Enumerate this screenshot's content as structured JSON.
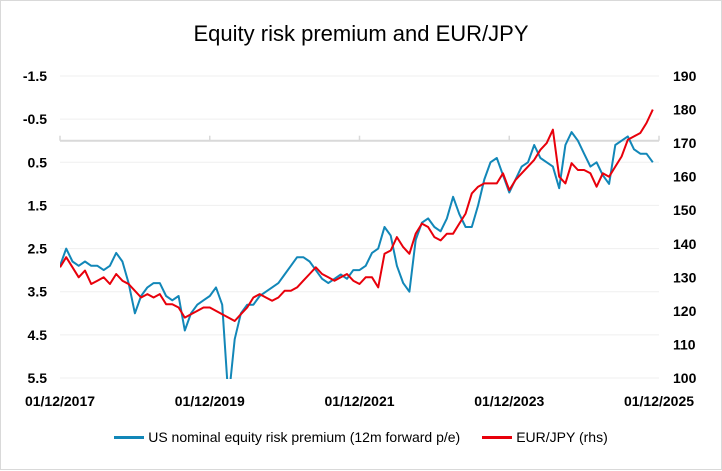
{
  "chart_data": {
    "type": "line",
    "title": "Equity risk premium and EUR/JPY",
    "x_tick_labels": [
      "01/12/2017",
      "01/12/2019",
      "01/12/2021",
      "01/12/2023",
      "01/12/2025"
    ],
    "x_range": [
      "2017-12",
      "2025-12"
    ],
    "y_left": {
      "range": [
        -1.5,
        5.5
      ],
      "inverted": true,
      "tick_labels": [
        "-1.5",
        "-0.5",
        "0.5",
        "1.5",
        "2.5",
        "3.5",
        "4.5",
        "5.5"
      ],
      "ticks": [
        -1.5,
        -0.5,
        0.5,
        1.5,
        2.5,
        3.5,
        4.5,
        5.5
      ]
    },
    "y_right": {
      "range": [
        100,
        190
      ],
      "tick_labels": [
        "190",
        "180",
        "170",
        "160",
        "150",
        "140",
        "130",
        "120",
        "110",
        "100"
      ],
      "ticks": [
        190,
        180,
        170,
        160,
        150,
        140,
        130,
        120,
        110,
        100
      ]
    },
    "grid": true,
    "legend_position": "bottom",
    "x": [
      "2017-12",
      "2018-01",
      "2018-02",
      "2018-03",
      "2018-04",
      "2018-05",
      "2018-06",
      "2018-07",
      "2018-08",
      "2018-09",
      "2018-10",
      "2018-11",
      "2018-12",
      "2019-01",
      "2019-02",
      "2019-03",
      "2019-04",
      "2019-05",
      "2019-06",
      "2019-07",
      "2019-08",
      "2019-09",
      "2019-10",
      "2019-11",
      "2019-12",
      "2020-01",
      "2020-02",
      "2020-03",
      "2020-04",
      "2020-05",
      "2020-06",
      "2020-07",
      "2020-08",
      "2020-09",
      "2020-10",
      "2020-11",
      "2020-12",
      "2021-01",
      "2021-02",
      "2021-03",
      "2021-04",
      "2021-05",
      "2021-06",
      "2021-07",
      "2021-08",
      "2021-09",
      "2021-10",
      "2021-11",
      "2021-12",
      "2022-01",
      "2022-02",
      "2022-03",
      "2022-04",
      "2022-05",
      "2022-06",
      "2022-07",
      "2022-08",
      "2022-09",
      "2022-10",
      "2022-11",
      "2022-12",
      "2023-01",
      "2023-02",
      "2023-03",
      "2023-04",
      "2023-05",
      "2023-06",
      "2023-07",
      "2023-08",
      "2023-09",
      "2023-10",
      "2023-11",
      "2023-12",
      "2024-01",
      "2024-02",
      "2024-03",
      "2024-04",
      "2024-05",
      "2024-06",
      "2024-07",
      "2024-08",
      "2024-09",
      "2024-10",
      "2024-11",
      "2024-12",
      "2025-01",
      "2025-02",
      "2025-03",
      "2025-04",
      "2025-05",
      "2025-06",
      "2025-07",
      "2025-08",
      "2025-09",
      "2025-10",
      "2025-11"
    ],
    "series": [
      {
        "name": "US nominal equity risk premium (12m forward p/e)",
        "axis": "left",
        "color": "#1287b8",
        "values": [
          2.9,
          2.5,
          2.8,
          2.9,
          2.8,
          2.9,
          2.9,
          3.0,
          2.9,
          2.6,
          2.8,
          3.3,
          4.0,
          3.6,
          3.4,
          3.3,
          3.3,
          3.6,
          3.7,
          3.6,
          4.4,
          4.0,
          3.8,
          3.7,
          3.6,
          3.4,
          3.8,
          6.0,
          4.6,
          4.0,
          3.8,
          3.8,
          3.6,
          3.5,
          3.4,
          3.3,
          3.1,
          2.9,
          2.7,
          2.7,
          2.8,
          3.0,
          3.2,
          3.3,
          3.2,
          3.1,
          3.2,
          3.0,
          3.0,
          2.9,
          2.6,
          2.5,
          2.0,
          2.2,
          2.9,
          3.3,
          3.5,
          2.3,
          1.9,
          1.8,
          2.0,
          2.1,
          1.8,
          1.3,
          1.7,
          2.0,
          2.0,
          1.5,
          0.9,
          0.5,
          0.4,
          0.8,
          1.2,
          0.9,
          0.6,
          0.5,
          0.1,
          0.4,
          0.5,
          0.6,
          1.1,
          0.1,
          -0.2,
          0.0,
          0.3,
          0.6,
          0.5,
          0.8,
          1.0,
          0.1,
          0.0,
          -0.1,
          0.2,
          0.3,
          0.3,
          0.5
        ]
      },
      {
        "name": "EUR/JPY (rhs)",
        "axis": "right",
        "color": "#e8000b",
        "values": [
          133,
          136,
          133,
          130,
          132,
          128,
          129,
          130,
          128,
          131,
          129,
          128,
          126,
          124,
          125,
          124,
          125,
          122,
          122,
          121,
          118,
          119,
          120,
          121,
          121,
          120,
          119,
          118,
          117,
          119,
          121,
          124,
          125,
          124,
          123,
          124,
          126,
          126,
          127,
          129,
          131,
          133,
          131,
          130,
          129,
          130,
          131,
          129,
          128,
          130,
          130,
          127,
          137,
          138,
          142,
          139,
          137,
          143,
          146,
          145,
          142,
          141,
          143,
          143,
          146,
          149,
          155,
          157,
          158,
          158,
          158,
          161,
          156,
          159,
          161,
          163,
          165,
          168,
          170,
          174,
          160,
          158,
          164,
          162,
          162,
          161,
          157,
          161,
          160,
          163,
          166,
          171,
          172,
          173,
          176,
          180
        ]
      }
    ]
  }
}
